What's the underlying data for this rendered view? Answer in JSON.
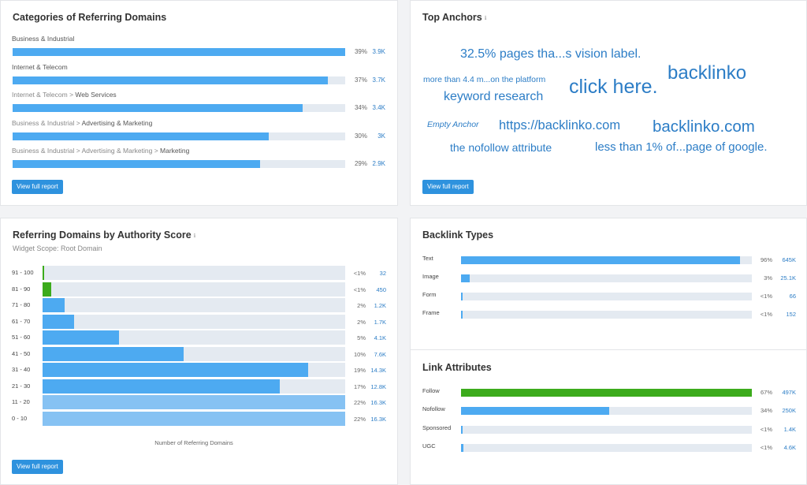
{
  "categories": {
    "title": "Categories of Referring Domains",
    "button": "View full report",
    "items": [
      {
        "prefix": "",
        "main": "Business & Industrial",
        "percent_value": 39,
        "pct": "39%",
        "count": "3.9K"
      },
      {
        "prefix": "",
        "main": "Internet & Telecom",
        "percent_value": 37,
        "pct": "37%",
        "count": "3.7K"
      },
      {
        "prefix": "Internet & Telecom > ",
        "main": "Web Services",
        "percent_value": 34,
        "pct": "34%",
        "count": "3.4K"
      },
      {
        "prefix": "Business & Industrial > ",
        "main": "Advertising & Marketing",
        "percent_value": 30,
        "pct": "30%",
        "count": "3K"
      },
      {
        "prefix": "Business & Industrial > Advertising & Marketing > ",
        "main": "Marketing",
        "percent_value": 29,
        "pct": "29%",
        "count": "2.9K"
      }
    ]
  },
  "anchors": {
    "title": "Top Anchors",
    "button": "View full report",
    "words": [
      {
        "text": "32.5% pages tha...s vision label."
      },
      {
        "text": "backlinko"
      },
      {
        "text": "more than 4.4 m...on the platform"
      },
      {
        "text": "click here."
      },
      {
        "text": "keyword research"
      },
      {
        "text": "Empty Anchor"
      },
      {
        "text": "https://backlinko.com"
      },
      {
        "text": "backlinko.com"
      },
      {
        "text": "the nofollow attribute"
      },
      {
        "text": "less than 1% of...page of google."
      }
    ]
  },
  "authority": {
    "title": "Referring Domains by Authority Score",
    "scope": "Widget Scope: Root Domain",
    "axis_caption": "Number of Referring Domains",
    "button": "View full report",
    "rows": [
      {
        "range": "91 - 100",
        "pct": "<1%",
        "count": "32",
        "percent_value": 0.2,
        "color": "#3cab1c"
      },
      {
        "range": "81 - 90",
        "pct": "<1%",
        "count": "450",
        "percent_value": 2.8,
        "color": "#3cab1c"
      },
      {
        "range": "71 - 80",
        "pct": "2%",
        "count": "1.2K",
        "percent_value": 7.4,
        "color": "#4daaf1"
      },
      {
        "range": "61 - 70",
        "pct": "2%",
        "count": "1.7K",
        "percent_value": 10.4,
        "color": "#4daaf1"
      },
      {
        "range": "51 - 60",
        "pct": "5%",
        "count": "4.1K",
        "percent_value": 25.2,
        "color": "#4daaf1"
      },
      {
        "range": "41 - 50",
        "pct": "10%",
        "count": "7.6K",
        "percent_value": 46.6,
        "color": "#4daaf1"
      },
      {
        "range": "31 - 40",
        "pct": "19%",
        "count": "14.3K",
        "percent_value": 87.7,
        "color": "#4daaf1"
      },
      {
        "range": "21 - 30",
        "pct": "17%",
        "count": "12.8K",
        "percent_value": 78.5,
        "color": "#4daaf1"
      },
      {
        "range": "11 - 20",
        "pct": "22%",
        "count": "16.3K",
        "percent_value": 100,
        "color": "#86c2f3"
      },
      {
        "range": "0 - 10",
        "pct": "22%",
        "count": "16.3K",
        "percent_value": 100,
        "color": "#86c2f3"
      }
    ]
  },
  "backlink_types": {
    "title": "Backlink Types",
    "items": [
      {
        "label": "Text",
        "pct": "96%",
        "count": "645K",
        "percent_value": 96
      },
      {
        "label": "Image",
        "pct": "3%",
        "count": "25.1K",
        "percent_value": 3
      },
      {
        "label": "Form",
        "pct": "<1%",
        "count": "66",
        "percent_value": 0.2
      },
      {
        "label": "Frame",
        "pct": "<1%",
        "count": "152",
        "percent_value": 0.2
      }
    ]
  },
  "link_attributes": {
    "title": "Link Attributes",
    "items": [
      {
        "label": "Follow",
        "pct": "67%",
        "count": "497K",
        "percent_value": 100,
        "color": "#3cab1c"
      },
      {
        "label": "Nofollow",
        "pct": "34%",
        "count": "250K",
        "percent_value": 51,
        "color": "#4daaf1"
      },
      {
        "label": "Sponsored",
        "pct": "<1%",
        "count": "1.4K",
        "percent_value": 0.3,
        "color": "#4daaf1"
      },
      {
        "label": "UGC",
        "pct": "<1%",
        "count": "4.6K",
        "percent_value": 0.7,
        "color": "#4daaf1"
      }
    ]
  }
}
